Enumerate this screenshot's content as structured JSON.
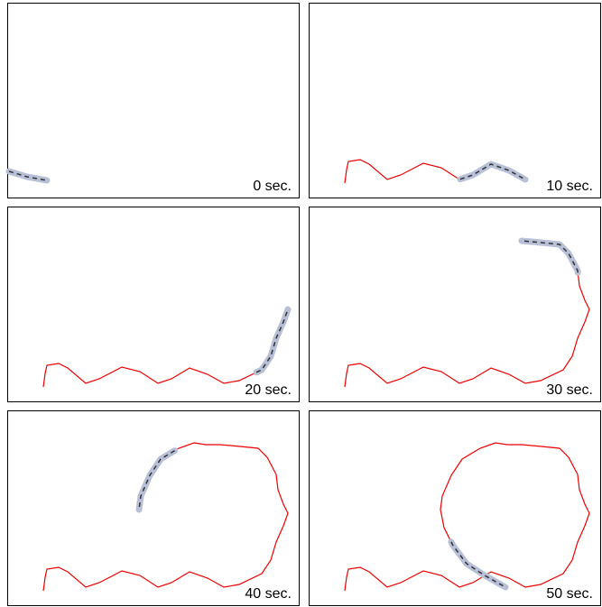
{
  "panels": [
    {
      "label": "0 sec."
    },
    {
      "label": "10 sec."
    },
    {
      "label": "20 sec."
    },
    {
      "label": "30 sec."
    },
    {
      "label": "40 sec."
    },
    {
      "label": "50 sec."
    }
  ]
}
